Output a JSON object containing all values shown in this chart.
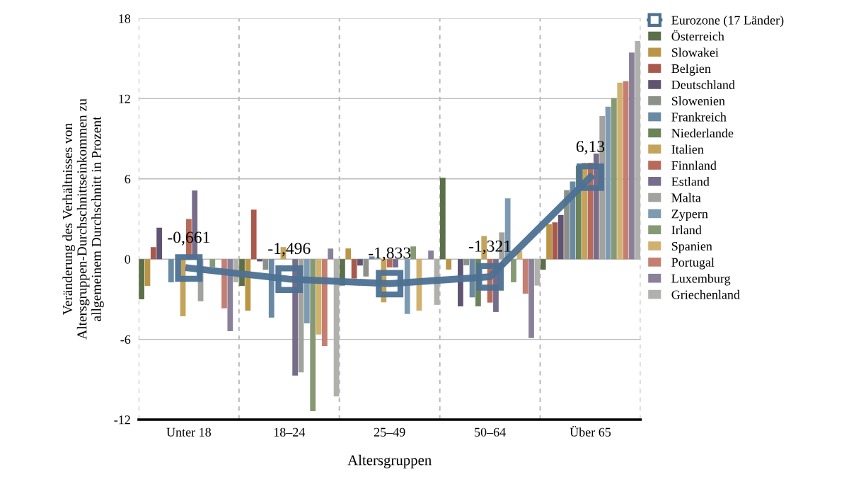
{
  "chart_data": {
    "type": "bar",
    "xlabel": "Altersgruppen",
    "ylabel": "Veränderung des Verhältnisses von\nAltersgruppen-Durchschnittseinkommen zu\nallgemeinem Durchschnitt in Prozent",
    "categories": [
      "Unter 18",
      "18–24",
      "25–49",
      "50–64",
      "Über 65"
    ],
    "ylim": [
      -12,
      18
    ],
    "yticks": [
      {
        "value": -12,
        "label": "-12"
      },
      {
        "value": -6,
        "label": "-6"
      },
      0,
      6,
      12,
      18
    ],
    "grid": true,
    "legend": "right",
    "series": [
      {
        "name": "Eurozone (17 Länder)",
        "type": "line",
        "color": "#4d7192",
        "marker": "square",
        "values": [
          -0.661,
          -1.496,
          -1.833,
          -1.321,
          6.13
        ],
        "value_labels": [
          "-0,661",
          "-1,496",
          "-1,833",
          "-1,321",
          "6,13"
        ]
      },
      {
        "name": "Österreich",
        "color": "#5b7049",
        "values": [
          -3.0,
          -2.0,
          -1.98,
          6.08,
          -0.8
        ]
      },
      {
        "name": "Slowakei",
        "color": "#b99545",
        "values": [
          -2.0,
          -3.85,
          0.8,
          -0.78,
          2.6
        ]
      },
      {
        "name": "Belgien",
        "color": "#a9594b",
        "values": [
          0.9,
          3.7,
          -1.45,
          0,
          2.75
        ]
      },
      {
        "name": "Deutschland",
        "color": "#5f5472",
        "values": [
          2.35,
          -0.17,
          -0.48,
          -3.53,
          3.3
        ]
      },
      {
        "name": "Slowenien",
        "color": "#8d8f89",
        "values": [
          0,
          -0.8,
          -1.3,
          -0.46,
          5.15
        ]
      },
      {
        "name": "Frankreich",
        "color": "#6a89a3",
        "values": [
          -1.73,
          -4.37,
          0.2,
          -2.86,
          5.8
        ]
      },
      {
        "name": "Niederlande",
        "color": "#6b8358",
        "values": [
          null,
          null,
          null,
          -3.53,
          7.0
        ]
      },
      {
        "name": "Italien",
        "color": "#c4a45b",
        "values": [
          -4.27,
          0.9,
          -3.23,
          1.73,
          7.2
        ]
      },
      {
        "name": "Finnland",
        "color": "#b86a5a",
        "values": [
          3.0,
          null,
          -0.62,
          -3.25,
          7.2
        ]
      },
      {
        "name": "Estland",
        "color": "#776c8a",
        "values": [
          5.13,
          -8.71,
          -0.62,
          -3.95,
          7.9
        ]
      },
      {
        "name": "Malta",
        "color": "#a2a29e",
        "values": [
          -3.15,
          -8.47,
          null,
          2.0,
          10.7
        ]
      },
      {
        "name": "Zypern",
        "color": "#7d9ab2",
        "values": [
          null,
          -4.8,
          -4.1,
          4.55,
          11.4
        ]
      },
      {
        "name": "Irland",
        "color": "#859a74",
        "values": [
          -0.6,
          -11.36,
          0.95,
          -1.73,
          12.05
        ]
      },
      {
        "name": "Spanien",
        "color": "#d0b26e",
        "values": [
          0,
          -5.64,
          -3.85,
          0.6,
          13.2
        ]
      },
      {
        "name": "Portugal",
        "color": "#c47f72",
        "values": [
          -3.68,
          -6.49,
          null,
          -2.58,
          13.3
        ]
      },
      {
        "name": "Luxemburg",
        "color": "#8a8099",
        "values": [
          -5.38,
          0.79,
          0.64,
          -5.9,
          15.45
        ]
      },
      {
        "name": "Griechenland",
        "color": "#b0b0ac",
        "values": [
          -1.73,
          -10.27,
          -3.42,
          -1.98,
          16.3
        ]
      }
    ]
  }
}
